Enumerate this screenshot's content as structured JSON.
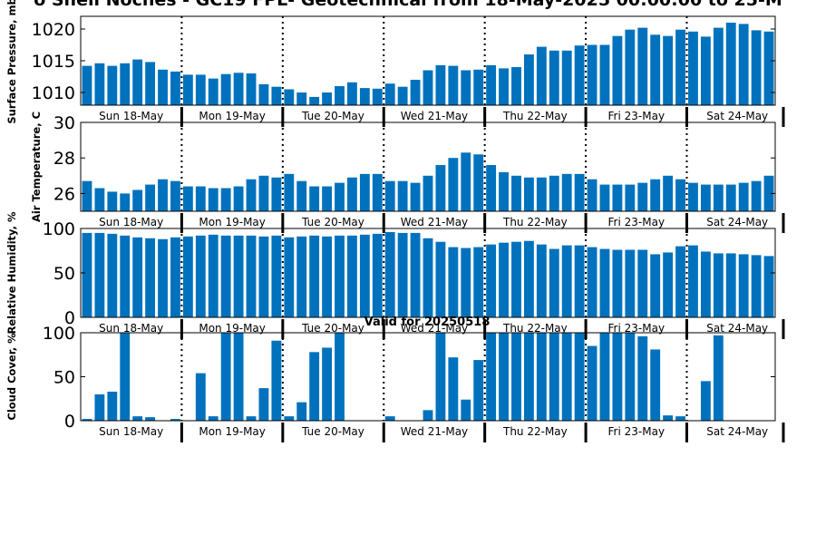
{
  "title": "o Shell Noches - GC19 FPL- Geotechnical from 18-May-2025 00:00:00 to 25-M",
  "valid_label": "Valid for 20250518",
  "colors": {
    "bar": "#0072BD",
    "axis": "#000000",
    "background": "#ffffff"
  },
  "chart_data": [
    {
      "type": "bar",
      "ylabel": "Surface Pressure, mb",
      "ylim": [
        1008,
        1022
      ],
      "yticks": [
        1010,
        1015,
        1020
      ],
      "xtick_labels": [
        "Sun 18-May",
        "Mon 19-May",
        "Tue 20-May",
        "Wed 21-May",
        "Thu 22-May",
        "Fri 23-May",
        "Sat 24-May"
      ],
      "values": [
        1014.2,
        1014.6,
        1014.2,
        1014.6,
        1015.2,
        1014.8,
        1013.6,
        1013.3,
        1012.8,
        1012.8,
        1012.2,
        1012.9,
        1013.1,
        1013.0,
        1011.3,
        1010.9,
        1010.5,
        1010.0,
        1009.3,
        1010.0,
        1011.0,
        1011.6,
        1010.7,
        1010.6,
        1011.4,
        1010.9,
        1012.0,
        1013.5,
        1014.3,
        1014.2,
        1013.5,
        1013.6,
        1014.3,
        1013.8,
        1014.0,
        1016.0,
        1017.2,
        1016.6,
        1016.6,
        1017.4,
        1017.5,
        1017.5,
        1018.9,
        1019.9,
        1020.2,
        1019.1,
        1018.9,
        1019.9,
        1019.6,
        1018.8,
        1020.2,
        1021.0,
        1020.8,
        1019.8,
        1019.6
      ]
    },
    {
      "type": "bar",
      "ylabel": "Air Temperature, C",
      "ylim": [
        25,
        30
      ],
      "yticks": [
        26,
        28,
        30
      ],
      "xtick_labels": [
        "Sun 18-May",
        "Mon 19-May",
        "Tue 20-May",
        "Wed 21-May",
        "Thu 22-May",
        "Fri 23-May",
        "Sat 24-May"
      ],
      "values": [
        26.7,
        26.3,
        26.1,
        26.0,
        26.2,
        26.5,
        26.8,
        26.7,
        26.4,
        26.4,
        26.3,
        26.3,
        26.4,
        26.8,
        27.0,
        26.9,
        27.1,
        26.7,
        26.4,
        26.4,
        26.6,
        26.9,
        27.1,
        27.1,
        26.7,
        26.7,
        26.6,
        27.0,
        27.6,
        28.0,
        28.3,
        28.2,
        27.6,
        27.2,
        27.0,
        26.9,
        26.9,
        27.0,
        27.1,
        27.1,
        26.8,
        26.5,
        26.5,
        26.5,
        26.6,
        26.8,
        27.0,
        26.8,
        26.6,
        26.5,
        26.5,
        26.5,
        26.6,
        26.7,
        27.0
      ]
    },
    {
      "type": "bar",
      "ylabel": "Relative Humidity, %",
      "ylim": [
        0,
        100
      ],
      "yticks": [
        0,
        50,
        100
      ],
      "xtick_labels": [
        "Sun 18-May",
        "Mon 19-May",
        "Tue 20-May",
        "Wed 21-May",
        "Thu 22-May",
        "Fri 23-May",
        "Sat 24-May"
      ],
      "values": [
        95,
        95,
        94,
        92,
        90,
        89,
        88,
        90,
        91,
        92,
        93,
        92,
        92,
        92,
        91,
        92,
        90,
        91,
        92,
        91,
        92,
        92,
        93,
        94,
        96,
        95,
        95,
        89,
        85,
        79,
        78,
        79,
        82,
        84,
        85,
        86,
        82,
        77,
        81,
        81,
        79,
        77,
        76,
        76,
        76,
        71,
        73,
        80,
        81,
        74,
        72,
        72,
        71,
        70,
        69
      ]
    },
    {
      "type": "bar",
      "ylabel": "Cloud Cover, %",
      "ylim": [
        0,
        100
      ],
      "yticks": [
        0,
        50,
        100
      ],
      "xtick_labels": [
        "Sun 18-May",
        "Mon 19-May",
        "Tue 20-May",
        "Wed 21-May",
        "Thu 22-May",
        "Fri 23-May",
        "Sat 24-May"
      ],
      "values": [
        2,
        30,
        33,
        100,
        5,
        4,
        0,
        2,
        0,
        54,
        5,
        100,
        100,
        5,
        37,
        91,
        5,
        21,
        78,
        83,
        100,
        0,
        0,
        0,
        5,
        0,
        0,
        12,
        100,
        72,
        24,
        69,
        100,
        100,
        100,
        100,
        100,
        100,
        100,
        100,
        85,
        100,
        100,
        100,
        96,
        81,
        6,
        5,
        0,
        45,
        97,
        0,
        0,
        0,
        0
      ]
    }
  ]
}
